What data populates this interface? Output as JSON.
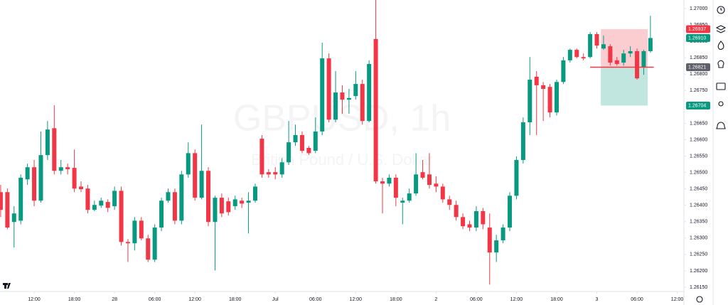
{
  "chart_data": {
    "type": "candlestick",
    "title": "GBPUSD, 1h",
    "subtitle": "British Pound / U.S. Dollar",
    "up_color": "#089981",
    "down_color": "#f23645",
    "grid": false,
    "xlim": [
      -0.1,
      102
    ],
    "xticks": [
      {
        "value": 5,
        "label": "12:00"
      },
      {
        "value": 11,
        "label": "18:00"
      },
      {
        "value": 17,
        "label": "28"
      },
      {
        "value": 23,
        "label": "06:00"
      },
      {
        "value": 29,
        "label": "12:00"
      },
      {
        "value": 35,
        "label": "18:00"
      },
      {
        "value": 41,
        "label": "Jul"
      },
      {
        "value": 47,
        "label": "06:00"
      },
      {
        "value": 53,
        "label": "12:00"
      },
      {
        "value": 59,
        "label": "18:00"
      },
      {
        "value": 65,
        "label": "2"
      },
      {
        "value": 71,
        "label": "06:00"
      },
      {
        "value": 77,
        "label": "12:00"
      },
      {
        "value": 83,
        "label": "18:00"
      },
      {
        "value": 89,
        "label": "3"
      },
      {
        "value": 95,
        "label": "06:00"
      },
      {
        "value": 101,
        "label": "12:00"
      }
    ],
    "ylim": [
      1.26137,
      1.27026
    ],
    "yticks": [
      {
        "value": 1.2615,
        "label": "1.26150"
      },
      {
        "value": 1.262,
        "label": "1.26200"
      },
      {
        "value": 1.2625,
        "label": "1.26250"
      },
      {
        "value": 1.263,
        "label": "1.26300"
      },
      {
        "value": 1.2635,
        "label": "1.26350"
      },
      {
        "value": 1.264,
        "label": "1.26400"
      },
      {
        "value": 1.2645,
        "label": "1.26450"
      },
      {
        "value": 1.265,
        "label": "1.26500"
      },
      {
        "value": 1.2655,
        "label": "1.26550"
      },
      {
        "value": 1.266,
        "label": "1.26600"
      },
      {
        "value": 1.2665,
        "label": "1.26650"
      },
      {
        "value": 1.267,
        "label": "1.26700"
      },
      {
        "value": 1.2675,
        "label": "1.26750"
      },
      {
        "value": 1.268,
        "label": "1.26800"
      },
      {
        "value": 1.2685,
        "label": "1.26850"
      },
      {
        "value": 1.269,
        "label": "1.26900"
      },
      {
        "value": 1.2695,
        "label": "1.26950"
      },
      {
        "value": 1.27,
        "label": "1.27000"
      }
    ],
    "price_labels": [
      {
        "value": 1.26937,
        "label": "1.26937",
        "color": "#f23645"
      },
      {
        "value": 1.2691,
        "label": "1.26910",
        "color": "#089981"
      },
      {
        "value": 1.26821,
        "label": "1.26821",
        "color": "#5d606b"
      },
      {
        "value": 1.26704,
        "label": "1.26704",
        "color": "#089981"
      }
    ],
    "open": [
      1.2644,
      1.2644,
      1.26349,
      1.26353,
      1.26479,
      1.26516,
      1.26414,
      1.26553,
      1.26635,
      1.26505,
      1.26516,
      1.26514,
      1.26457,
      1.26451,
      1.26386,
      1.26399,
      1.2641,
      1.26397,
      1.26444,
      1.26288,
      1.26284,
      1.26353,
      1.26299,
      1.26234,
      1.26332,
      1.26414,
      1.2644,
      1.26353,
      1.26494,
      1.26559,
      1.26423,
      1.26505,
      1.26349,
      1.26423,
      1.26412,
      1.26397,
      1.26414,
      1.26408,
      1.26414,
      1.26603,
      1.26501,
      1.26501,
      1.26494,
      1.26531,
      1.26592,
      1.26614,
      1.26575,
      1.26566,
      1.26625,
      1.26848,
      1.26661,
      1.26744,
      1.26722,
      1.26733,
      1.2677,
      1.26657,
      1.26907,
      1.26473,
      1.26466,
      1.26484,
      1.26408,
      1.26414,
      1.26436,
      1.26501,
      1.26494,
      1.26466,
      1.26457,
      1.26418,
      1.26401,
      1.26364,
      1.26342,
      1.26332,
      1.26382,
      1.26332,
      1.26256,
      1.26293,
      1.26332,
      1.26429,
      1.26538,
      1.26653,
      1.26792,
      1.26766,
      1.26761,
      1.26683,
      1.26776,
      1.26842,
      1.26874,
      1.26852,
      1.26852,
      1.26922,
      1.26878,
      1.26885,
      1.26842,
      1.26835,
      1.26863,
      1.2687,
      1.2682,
      1.2687
    ],
    "high": [
      1.26462,
      1.26451,
      1.26397,
      1.26494,
      1.26527,
      1.26538,
      1.26625,
      1.26657,
      1.26705,
      1.26538,
      1.26527,
      1.2657,
      1.26473,
      1.26462,
      1.26414,
      1.26423,
      1.26418,
      1.26457,
      1.26457,
      1.26297,
      1.26364,
      1.26364,
      1.2631,
      1.26342,
      1.26423,
      1.26451,
      1.26451,
      1.26505,
      1.26592,
      1.2657,
      1.26646,
      1.26516,
      1.26429,
      1.26436,
      1.26423,
      1.26429,
      1.26423,
      1.2644,
      1.26466,
      1.26614,
      1.2651,
      1.26516,
      1.26544,
      1.26657,
      1.26646,
      1.26625,
      1.26581,
      1.26668,
      1.26896,
      1.26863,
      1.26809,
      1.26766,
      1.26755,
      1.26809,
      1.26783,
      1.26842,
      1.27026,
      1.26484,
      1.26494,
      1.26494,
      1.26423,
      1.26451,
      1.26559,
      1.26538,
      1.26559,
      1.26488,
      1.26466,
      1.26429,
      1.26414,
      1.26375,
      1.26353,
      1.26397,
      1.26392,
      1.26375,
      1.2631,
      1.26342,
      1.2644,
      1.26549,
      1.26668,
      1.26852,
      1.26809,
      1.26776,
      1.2677,
      1.26783,
      1.26852,
      1.26878,
      1.26878,
      1.26863,
      1.26928,
      1.26928,
      1.26918,
      1.26891,
      1.26852,
      1.26874,
      1.26885,
      1.26878,
      1.26874,
      1.26978
    ],
    "low": [
      1.26364,
      1.26327,
      1.26271,
      1.26342,
      1.26462,
      1.26397,
      1.26408,
      1.26538,
      1.26494,
      1.26494,
      1.26494,
      1.2644,
      1.2644,
      1.26375,
      1.26382,
      1.26392,
      1.26379,
      1.26386,
      1.26277,
      1.26227,
      1.26262,
      1.26293,
      1.26227,
      1.26227,
      1.26321,
      1.26408,
      1.26342,
      1.26342,
      1.26484,
      1.26414,
      1.26418,
      1.26336,
      1.26201,
      1.26364,
      1.26369,
      1.26386,
      1.26392,
      1.26314,
      1.26408,
      1.26484,
      1.26484,
      1.26479,
      1.26484,
      1.26523,
      1.26581,
      1.26559,
      1.26553,
      1.26559,
      1.26614,
      1.26653,
      1.26653,
      1.26679,
      1.26679,
      1.26722,
      1.26646,
      1.26653,
      1.26466,
      1.26375,
      1.26457,
      1.26397,
      1.26342,
      1.26408,
      1.26429,
      1.26479,
      1.26451,
      1.2644,
      1.26408,
      1.26386,
      1.26353,
      1.26327,
      1.26321,
      1.26321,
      1.26327,
      1.26158,
      1.26227,
      1.26284,
      1.26321,
      1.26418,
      1.26527,
      1.26614,
      1.26614,
      1.26657,
      1.26668,
      1.26674,
      1.2677,
      1.26835,
      1.26848,
      1.26842,
      1.26848,
      1.26878,
      1.26874,
      1.26826,
      1.26826,
      1.26826,
      1.26852,
      1.26783,
      1.26798,
      1.26865
    ],
    "close": [
      1.26386,
      1.26332,
      1.26375,
      1.26484,
      1.26516,
      1.26414,
      1.26553,
      1.26631,
      1.26505,
      1.26516,
      1.2651,
      1.26451,
      1.26449,
      1.26386,
      1.26401,
      1.26414,
      1.26392,
      1.26444,
      1.26288,
      1.26284,
      1.26353,
      1.26299,
      1.26234,
      1.26332,
      1.26414,
      1.2644,
      1.26353,
      1.26494,
      1.26559,
      1.26423,
      1.26505,
      1.26349,
      1.26423,
      1.26375,
      1.26379,
      1.26418,
      1.26405,
      1.26414,
      1.26457,
      1.26494,
      1.26494,
      1.26494,
      1.26531,
      1.26592,
      1.26614,
      1.26566,
      1.26559,
      1.26625,
      1.26848,
      1.26661,
      1.26744,
      1.26722,
      1.26727,
      1.2677,
      1.26657,
      1.26831,
      1.26473,
      1.26466,
      1.26484,
      1.26423,
      1.26414,
      1.26436,
      1.26494,
      1.26484,
      1.26462,
      1.26457,
      1.26418,
      1.26401,
      1.26364,
      1.26336,
      1.26332,
      1.26382,
      1.26342,
      1.26256,
      1.26293,
      1.26332,
      1.26429,
      1.26538,
      1.26653,
      1.26783,
      1.26766,
      1.26755,
      1.26683,
      1.26776,
      1.26842,
      1.26874,
      1.26852,
      1.26848,
      1.26922,
      1.26887,
      1.26891,
      1.26835,
      1.26831,
      1.26863,
      1.2687,
      1.26787,
      1.2687,
      1.2691
    ]
  }
}
